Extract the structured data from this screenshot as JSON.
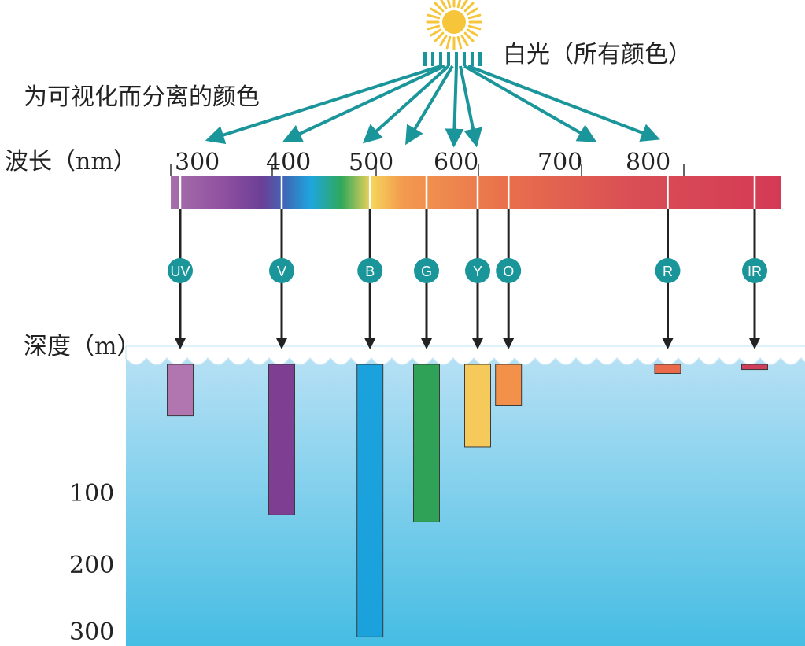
{
  "labels": {
    "white_light": "白光（所有颜色）",
    "separated": "为可视化而分离的颜色",
    "wavelength": "波长（nm）",
    "depth": "深度（m）"
  },
  "wavelength_ticks": [
    "300",
    "400",
    "500",
    "600",
    "700",
    "800"
  ],
  "depth_ticks": [
    "100",
    "200",
    "300"
  ],
  "colors": [
    {
      "code": "UV",
      "wavelength": 300,
      "depth": 40,
      "color": "#b176b0"
    },
    {
      "code": "V",
      "wavelength": 400,
      "depth": 130,
      "color": "#7e3f92"
    },
    {
      "code": "B",
      "wavelength": 485,
      "depth": 305,
      "color": "#1ba2dc"
    },
    {
      "code": "G",
      "wavelength": 540,
      "depth": 140,
      "color": "#2fa257"
    },
    {
      "code": "Y",
      "wavelength": 590,
      "depth": 64,
      "color": "#f5c95a"
    },
    {
      "code": "O",
      "wavelength": 620,
      "depth": 32,
      "color": "#f3914a"
    },
    {
      "code": "R",
      "wavelength": 775,
      "depth": 7,
      "color": "#ea6b4b"
    },
    {
      "code": "IR",
      "wavelength": 860,
      "depth": 4,
      "color": "#cf3e5a"
    }
  ],
  "style": {
    "accent": "#1a959a",
    "water_top": "#b6e0f4",
    "water_bottom": "#45bde3",
    "sun": "#f6c53a"
  }
}
